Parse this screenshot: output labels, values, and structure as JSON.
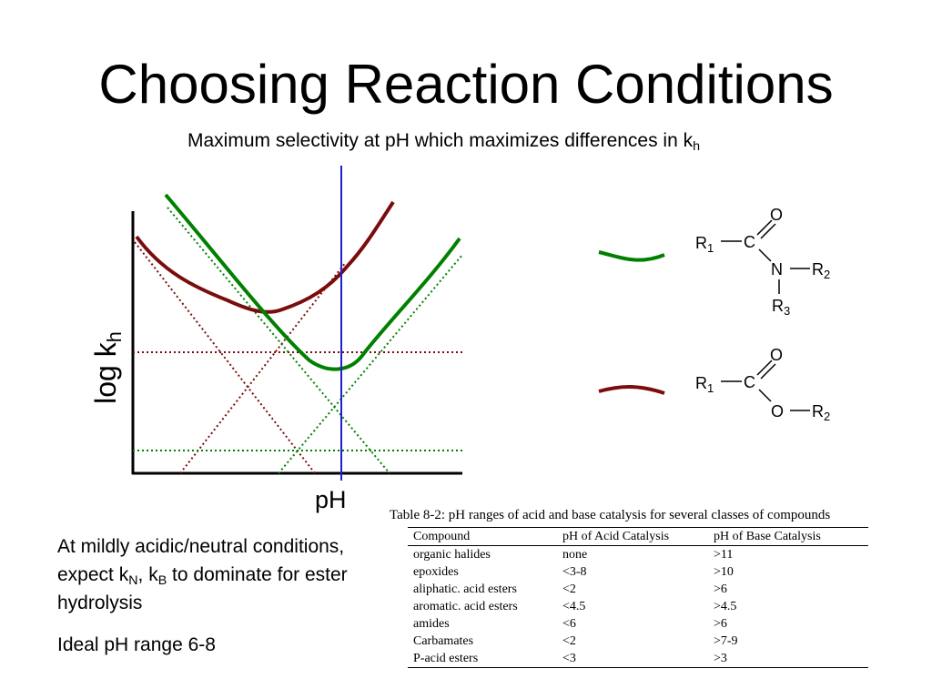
{
  "slide": {
    "title": "Choosing Reaction Conditions",
    "subtitle_main": "Maximum selectivity at pH which maximizes differences in k",
    "subtitle_sub": "h"
  },
  "diagram": {
    "y_label_main": "log k",
    "y_label_sub": "h",
    "x_label": "pH",
    "colors": {
      "amide": "#008000",
      "ester": "#7b0c0c",
      "marker": "#1f1fcf"
    }
  },
  "structures": {
    "amide": {
      "O": "O",
      "C": "C",
      "N": "N",
      "R1": "R",
      "R1_sub": "1",
      "R2": "R",
      "R2_sub": "2",
      "R3": "R",
      "R3_sub": "3"
    },
    "ester": {
      "O_carbonyl": "O",
      "C": "C",
      "O_ether": "O",
      "R1": "R",
      "R1_sub": "1",
      "R2": "R",
      "R2_sub": "2"
    }
  },
  "notes": {
    "line1": "At mildly acidic/neutral conditions, expect k",
    "sub_N": "N",
    "sep": ", k",
    "sub_B": "B",
    "line1_end": " to dominate for ester hydrolysis",
    "line2": "Ideal pH range 6-8"
  },
  "table": {
    "caption": "Table 8-2:  pH ranges of acid and base catalysis for several classes of compounds",
    "headers": [
      "Compound",
      "pH of Acid Catalysis",
      "pH of Base Catalysis"
    ],
    "rows": [
      [
        "organic halides",
        "none",
        ">11"
      ],
      [
        "epoxides",
        "<3-8",
        ">10"
      ],
      [
        "aliphatic. acid esters",
        "<2",
        ">6"
      ],
      [
        "aromatic. acid esters",
        "<4.5",
        ">4.5"
      ],
      [
        "amides",
        "<6",
        ">6"
      ],
      [
        "Carbamates",
        "<2",
        ">7-9"
      ],
      [
        "P-acid esters",
        "<3",
        ">3"
      ]
    ]
  }
}
